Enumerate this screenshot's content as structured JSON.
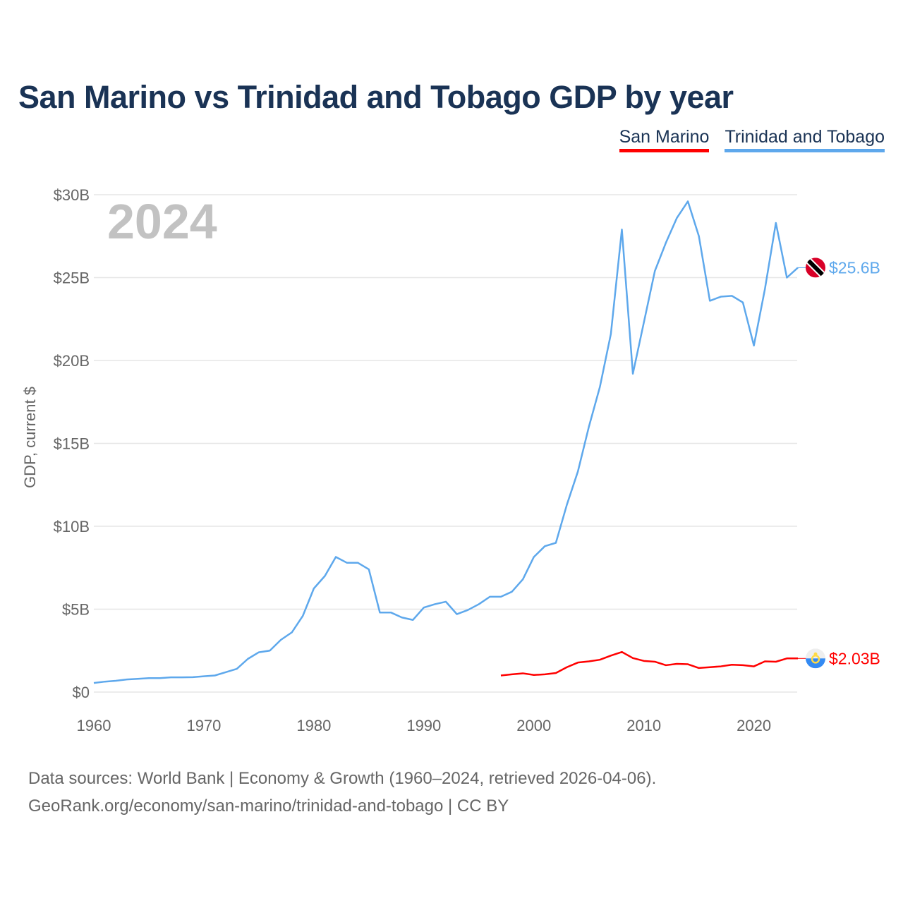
{
  "chart_data": {
    "type": "line",
    "title": "San Marino vs Trinidad and Tobago GDP by year",
    "ylabel": "GDP, current $",
    "xlabel": "",
    "year_label": "2024",
    "xlim": [
      1960,
      2024
    ],
    "ylim": [
      0,
      30
    ],
    "x_ticks": [
      "1960",
      "1970",
      "1980",
      "1990",
      "2000",
      "2010",
      "2020"
    ],
    "y_ticks": [
      {
        "value": 0,
        "label": "$0"
      },
      {
        "value": 5,
        "label": "$5B"
      },
      {
        "value": 10,
        "label": "$10B"
      },
      {
        "value": 15,
        "label": "$15B"
      },
      {
        "value": 20,
        "label": "$20B"
      },
      {
        "value": 25,
        "label": "$25B"
      },
      {
        "value": 30,
        "label": "$30B"
      }
    ],
    "grid": true,
    "legend_placement": "top-right",
    "series": [
      {
        "name": "San Marino",
        "color": "#ff0000",
        "end_label": "$2.03B",
        "flag_icon": "san-marino-flag-icon",
        "start_year": 1997,
        "values": [
          1.0,
          1.07,
          1.13,
          1.03,
          1.07,
          1.15,
          1.5,
          1.78,
          1.85,
          1.95,
          2.2,
          2.42,
          2.05,
          1.88,
          1.83,
          1.62,
          1.7,
          1.68,
          1.45,
          1.5,
          1.55,
          1.65,
          1.62,
          1.55,
          1.85,
          1.83,
          2.03,
          2.03
        ]
      },
      {
        "name": "Trinidad and Tobago",
        "color": "#5ea8ec",
        "end_label": "$25.6B",
        "flag_icon": "trinidad-and-tobago-flag-icon",
        "start_year": 1960,
        "values": [
          0.55,
          0.63,
          0.68,
          0.76,
          0.8,
          0.84,
          0.84,
          0.89,
          0.89,
          0.9,
          0.95,
          1.0,
          1.2,
          1.4,
          2.0,
          2.4,
          2.5,
          3.15,
          3.6,
          4.6,
          6.25,
          7.0,
          8.15,
          7.8,
          7.8,
          7.4,
          4.8,
          4.8,
          4.5,
          4.35,
          5.1,
          5.3,
          5.45,
          4.7,
          4.95,
          5.3,
          5.75,
          5.75,
          6.05,
          6.8,
          8.15,
          8.8,
          9.0,
          11.3,
          13.3,
          16.0,
          18.4,
          21.6,
          27.9,
          19.2,
          22.3,
          25.4,
          27.1,
          28.6,
          29.6,
          27.5,
          23.6,
          23.85,
          23.9,
          23.5,
          20.9,
          24.3,
          28.3,
          25.0,
          25.6
        ]
      }
    ]
  },
  "footer": {
    "line1": "Data sources: World Bank | Economy & Growth (1960–2024, retrieved 2026-04-06).",
    "line2": "GeoRank.org/economy/san-marino/trinidad-and-tobago | CC BY"
  }
}
